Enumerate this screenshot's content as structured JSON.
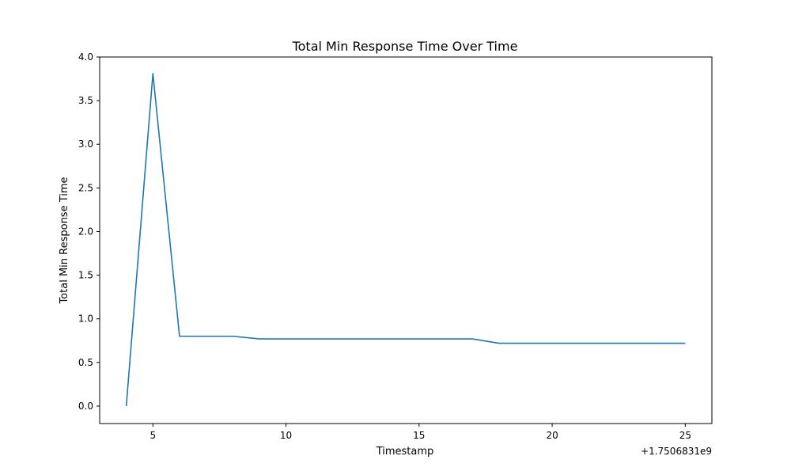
{
  "chart_data": {
    "type": "line",
    "title": "Total Min Response Time Over Time",
    "xlabel": "Timestamp",
    "ylabel": "Total Min Response Time",
    "x_offset_label": "+1.7506831e9",
    "xlim": [
      3,
      26
    ],
    "ylim": [
      -0.2,
      4.0
    ],
    "xticks": [
      5,
      10,
      15,
      20,
      25
    ],
    "xtick_labels": [
      "5",
      "10",
      "15",
      "20",
      "25"
    ],
    "yticks": [
      0.0,
      0.5,
      1.0,
      1.5,
      2.0,
      2.5,
      3.0,
      3.5,
      4.0
    ],
    "ytick_labels": [
      "0.0",
      "0.5",
      "1.0",
      "1.5",
      "2.0",
      "2.5",
      "3.0",
      "3.5",
      "4.0"
    ],
    "grid": false,
    "series": [
      {
        "color": "#1f77b4",
        "x": [
          4,
          5,
          6,
          7,
          8,
          9,
          10,
          11,
          12,
          13,
          14,
          15,
          16,
          17,
          18,
          19,
          20,
          21,
          22,
          23,
          24,
          25
        ],
        "y": [
          0.0,
          3.81,
          0.8,
          0.8,
          0.8,
          0.77,
          0.77,
          0.77,
          0.77,
          0.77,
          0.77,
          0.77,
          0.77,
          0.77,
          0.72,
          0.72,
          0.72,
          0.72,
          0.72,
          0.72,
          0.72,
          0.72
        ]
      }
    ]
  }
}
